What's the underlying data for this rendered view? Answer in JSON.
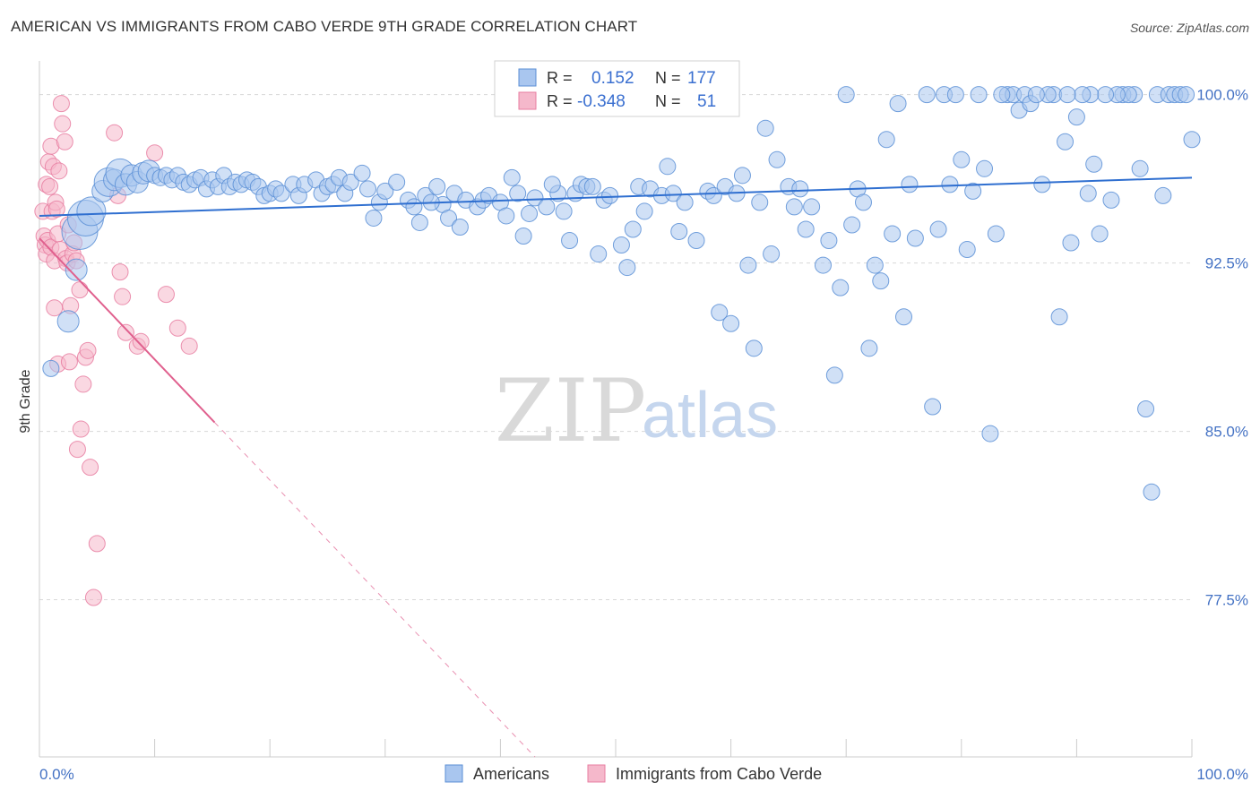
{
  "title": "AMERICAN VS IMMIGRANTS FROM CABO VERDE 9TH GRADE CORRELATION CHART",
  "source": "Source: ZipAtlas.com",
  "watermark": {
    "zip": "ZIP",
    "atlas": "atlas"
  },
  "colors": {
    "blue_fill": "#a9c6ef",
    "blue_stroke": "#5b8fd6",
    "blue_line": "#2f6fd0",
    "pink_fill": "#f5b8cb",
    "pink_stroke": "#e87ea1",
    "pink_line": "#e0608e",
    "tick_text": "#4472c4",
    "grid": "#d8d8d8"
  },
  "stats": {
    "americans": {
      "r_label": "R =",
      "r_value": "0.152",
      "n_label": "N =",
      "n_value": "177"
    },
    "cabo_verde": {
      "r_label": "R =",
      "r_value": "-0.348",
      "n_label": "N =",
      "n_value": "51"
    }
  },
  "chart_data": {
    "type": "scatter",
    "title": "AMERICAN VS IMMIGRANTS FROM CABO VERDE 9TH GRADE CORRELATION CHART",
    "xlabel": "",
    "ylabel": "9th Grade",
    "xlim": [
      0,
      100
    ],
    "ylim": [
      70.5,
      101.5
    ],
    "x_ticks": [
      "0.0%",
      "100.0%"
    ],
    "y_ticks": [
      {
        "value": 100.0,
        "label": "100.0%"
      },
      {
        "value": 92.5,
        "label": "92.5%"
      },
      {
        "value": 85.0,
        "label": "85.0%"
      },
      {
        "value": 77.5,
        "label": "77.5%"
      }
    ],
    "grid": true,
    "legend_position": "bottom",
    "series": [
      {
        "name": "Americans",
        "color": "#a9c6ef",
        "trend": {
          "x": [
            0,
            100
          ],
          "y": [
            94.6,
            96.3
          ],
          "dashed_to": null
        },
        "points": [
          [
            1.0,
            87.8,
            1
          ],
          [
            2.5,
            89.9,
            2
          ],
          [
            3.2,
            92.2,
            2
          ],
          [
            3.5,
            93.9,
            4
          ],
          [
            4.0,
            94.5,
            4
          ],
          [
            4.5,
            94.8,
            3
          ],
          [
            5.5,
            95.7,
            2
          ],
          [
            6.0,
            96.1,
            3
          ],
          [
            6.5,
            96.2,
            2
          ],
          [
            7.0,
            96.5,
            3
          ],
          [
            7.5,
            96.0,
            2
          ],
          [
            8.0,
            96.4,
            2
          ],
          [
            8.5,
            96.1,
            2
          ],
          [
            9.0,
            96.5,
            2
          ],
          [
            9.5,
            96.6,
            2
          ],
          [
            10.0,
            96.4,
            1
          ],
          [
            10.5,
            96.3,
            1
          ],
          [
            11.0,
            96.4,
            1
          ],
          [
            11.5,
            96.2,
            1
          ],
          [
            12.0,
            96.4,
            1
          ],
          [
            12.5,
            96.1,
            1
          ],
          [
            13.0,
            96.0,
            1
          ],
          [
            13.5,
            96.2,
            1
          ],
          [
            14.0,
            96.3,
            1
          ],
          [
            14.5,
            95.8,
            1
          ],
          [
            15.0,
            96.2,
            1
          ],
          [
            15.5,
            95.9,
            1
          ],
          [
            16.0,
            96.4,
            1
          ],
          [
            16.5,
            95.9,
            1
          ],
          [
            17.0,
            96.1,
            1
          ],
          [
            17.5,
            96.0,
            1
          ],
          [
            18.0,
            96.2,
            1
          ],
          [
            18.5,
            96.1,
            1
          ],
          [
            19.0,
            95.9,
            1
          ],
          [
            19.5,
            95.5,
            1
          ],
          [
            20.0,
            95.6,
            1
          ],
          [
            20.5,
            95.8,
            1
          ],
          [
            21.0,
            95.6,
            1
          ],
          [
            22.0,
            96.0,
            1
          ],
          [
            22.5,
            95.5,
            1
          ],
          [
            23.0,
            96.0,
            1
          ],
          [
            24.0,
            96.2,
            1
          ],
          [
            24.5,
            95.6,
            1
          ],
          [
            25.0,
            95.9,
            1
          ],
          [
            25.5,
            96.0,
            1
          ],
          [
            26.0,
            96.3,
            1
          ],
          [
            26.5,
            95.6,
            1
          ],
          [
            27.0,
            96.1,
            1
          ],
          [
            28.0,
            96.5,
            1
          ],
          [
            28.5,
            95.8,
            1
          ],
          [
            29.0,
            94.5,
            1
          ],
          [
            29.5,
            95.2,
            1
          ],
          [
            30.0,
            95.7,
            1
          ],
          [
            31.0,
            96.1,
            1
          ],
          [
            32.0,
            95.3,
            1
          ],
          [
            32.5,
            95.0,
            1
          ],
          [
            33.0,
            94.3,
            1
          ],
          [
            33.5,
            95.5,
            1
          ],
          [
            34.5,
            95.9,
            1
          ],
          [
            35.0,
            95.1,
            1
          ],
          [
            35.5,
            94.5,
            1
          ],
          [
            36.0,
            95.6,
            1
          ],
          [
            36.5,
            94.1,
            1
          ],
          [
            37.0,
            95.3,
            1
          ],
          [
            38.0,
            95.0,
            1
          ],
          [
            38.5,
            95.3,
            1
          ],
          [
            39.0,
            95.5,
            1
          ],
          [
            40.0,
            95.2,
            1
          ],
          [
            40.5,
            94.6,
            1
          ],
          [
            41.0,
            96.3,
            1
          ],
          [
            41.5,
            95.6,
            1
          ],
          [
            42.0,
            93.7,
            1
          ],
          [
            42.5,
            94.7,
            1
          ],
          [
            43.0,
            95.4,
            1
          ],
          [
            44.0,
            95.0,
            1
          ],
          [
            45.0,
            95.6,
            1
          ],
          [
            45.5,
            94.8,
            1
          ],
          [
            46.0,
            93.5,
            1
          ],
          [
            46.5,
            95.6,
            1
          ],
          [
            47.0,
            96.0,
            1
          ],
          [
            47.5,
            95.9,
            1
          ],
          [
            48.0,
            95.9,
            1
          ],
          [
            48.5,
            92.9,
            1
          ],
          [
            49.0,
            95.3,
            1
          ],
          [
            49.5,
            95.5,
            1
          ],
          [
            50.5,
            93.3,
            1
          ],
          [
            51.0,
            92.3,
            1
          ],
          [
            51.5,
            94.0,
            1
          ],
          [
            52.0,
            95.9,
            1
          ],
          [
            52.5,
            94.8,
            1
          ],
          [
            53.0,
            95.8,
            1
          ],
          [
            54.0,
            95.5,
            1
          ],
          [
            54.5,
            96.8,
            1
          ],
          [
            55.0,
            95.6,
            1
          ],
          [
            55.5,
            93.9,
            1
          ],
          [
            56.0,
            95.2,
            1
          ],
          [
            57.0,
            93.5,
            1
          ],
          [
            58.0,
            95.7,
            1
          ],
          [
            58.5,
            95.5,
            1
          ],
          [
            59.0,
            90.3,
            1
          ],
          [
            59.5,
            95.9,
            1
          ],
          [
            60.0,
            89.8,
            1
          ],
          [
            60.5,
            95.6,
            1
          ],
          [
            61.0,
            96.4,
            1
          ],
          [
            61.5,
            92.4,
            1
          ],
          [
            62.0,
            88.7,
            1
          ],
          [
            62.5,
            95.2,
            1
          ],
          [
            63.0,
            98.5,
            1
          ],
          [
            63.5,
            92.9,
            1
          ],
          [
            64.0,
            97.1,
            1
          ],
          [
            65.0,
            95.9,
            1
          ],
          [
            65.5,
            95.0,
            1
          ],
          [
            66.0,
            95.8,
            1
          ],
          [
            66.5,
            94.0,
            1
          ],
          [
            67.0,
            95.0,
            1
          ],
          [
            68.0,
            92.4,
            1
          ],
          [
            68.5,
            93.5,
            1
          ],
          [
            69.0,
            87.5,
            1
          ],
          [
            69.5,
            91.4,
            1
          ],
          [
            70.0,
            100.0,
            1
          ],
          [
            70.5,
            94.2,
            1
          ],
          [
            71.0,
            95.8,
            1
          ],
          [
            71.5,
            95.2,
            1
          ],
          [
            72.0,
            88.7,
            1
          ],
          [
            72.5,
            92.4,
            1
          ],
          [
            73.0,
            91.7,
            1
          ],
          [
            73.5,
            98.0,
            1
          ],
          [
            74.0,
            93.8,
            1
          ],
          [
            75.0,
            90.1,
            1
          ],
          [
            75.5,
            96.0,
            1
          ],
          [
            76.0,
            93.6,
            1
          ],
          [
            77.0,
            100.0,
            1
          ],
          [
            77.5,
            86.1,
            1
          ],
          [
            78.0,
            94.0,
            1
          ],
          [
            78.5,
            100.0,
            1
          ],
          [
            79.0,
            96.0,
            1
          ],
          [
            80.0,
            97.1,
            1
          ],
          [
            80.5,
            93.1,
            1
          ],
          [
            81.0,
            95.7,
            1
          ],
          [
            81.5,
            100.0,
            1
          ],
          [
            82.0,
            96.7,
            1
          ],
          [
            82.5,
            84.9,
            1
          ],
          [
            83.0,
            93.8,
            1
          ],
          [
            84.0,
            100.0,
            1
          ],
          [
            84.5,
            100.0,
            1
          ],
          [
            85.0,
            99.3,
            1
          ],
          [
            85.5,
            100.0,
            1
          ],
          [
            86.0,
            99.6,
            1
          ],
          [
            87.0,
            96.0,
            1
          ],
          [
            88.0,
            100.0,
            1
          ],
          [
            88.5,
            90.1,
            1
          ],
          [
            89.0,
            97.9,
            1
          ],
          [
            89.5,
            93.4,
            1
          ],
          [
            90.0,
            99.0,
            1
          ],
          [
            91.0,
            95.6,
            1
          ],
          [
            91.5,
            96.9,
            1
          ],
          [
            92.0,
            93.8,
            1
          ],
          [
            93.0,
            95.3,
            1
          ],
          [
            94.0,
            100.0,
            1
          ],
          [
            95.0,
            100.0,
            1
          ],
          [
            95.5,
            96.7,
            1
          ],
          [
            96.0,
            86.0,
            1
          ],
          [
            97.0,
            100.0,
            1
          ],
          [
            97.5,
            95.5,
            1
          ],
          [
            98.0,
            100.0,
            1
          ],
          [
            98.5,
            100.0,
            1
          ],
          [
            99.0,
            100.0,
            1
          ],
          [
            99.5,
            100.0,
            1
          ],
          [
            100.0,
            98.0,
            1
          ],
          [
            96.5,
            82.3,
            1
          ],
          [
            94.5,
            100.0,
            1
          ],
          [
            93.5,
            100.0,
            1
          ],
          [
            92.5,
            100.0,
            1
          ],
          [
            91.2,
            100.0,
            1
          ],
          [
            90.5,
            100.0,
            1
          ],
          [
            89.2,
            100.0,
            1
          ],
          [
            87.5,
            100.0,
            1
          ],
          [
            86.5,
            100.0,
            1
          ],
          [
            83.5,
            100.0,
            1
          ],
          [
            79.5,
            100.0,
            1
          ],
          [
            74.5,
            99.6,
            1
          ],
          [
            44.5,
            96.0,
            1
          ],
          [
            34.0,
            95.2,
            1
          ]
        ]
      },
      {
        "name": "Immigrants from Cabo Verde",
        "color": "#f5b8cb",
        "trend": {
          "x": [
            0,
            15.2
          ],
          "y": [
            93.6,
            85.4
          ],
          "dashed_to": [
            43.0,
            70.5
          ]
        },
        "points": [
          [
            0.3,
            94.8,
            1
          ],
          [
            0.4,
            93.7,
            1
          ],
          [
            0.5,
            93.3,
            1
          ],
          [
            0.6,
            92.9,
            1
          ],
          [
            0.6,
            96.0,
            1
          ],
          [
            0.7,
            93.5,
            1
          ],
          [
            0.8,
            97.0,
            1
          ],
          [
            0.9,
            95.9,
            1
          ],
          [
            1.0,
            97.7,
            1
          ],
          [
            1.0,
            93.2,
            1
          ],
          [
            1.1,
            94.8,
            1
          ],
          [
            1.2,
            96.8,
            1
          ],
          [
            1.3,
            92.6,
            1
          ],
          [
            1.3,
            90.5,
            1
          ],
          [
            1.4,
            95.2,
            1
          ],
          [
            1.5,
            94.9,
            1
          ],
          [
            1.6,
            93.8,
            1
          ],
          [
            1.6,
            88.0,
            1
          ],
          [
            1.7,
            96.6,
            1
          ],
          [
            1.8,
            93.1,
            1
          ],
          [
            1.9,
            99.6,
            1
          ],
          [
            2.0,
            98.7,
            1
          ],
          [
            2.2,
            97.9,
            1
          ],
          [
            2.3,
            92.7,
            1
          ],
          [
            2.4,
            92.5,
            1
          ],
          [
            2.5,
            94.2,
            1
          ],
          [
            2.6,
            88.1,
            1
          ],
          [
            2.7,
            90.6,
            1
          ],
          [
            2.9,
            92.9,
            1
          ],
          [
            3.0,
            93.4,
            1
          ],
          [
            3.2,
            92.6,
            1
          ],
          [
            3.3,
            84.2,
            1
          ],
          [
            3.5,
            91.3,
            1
          ],
          [
            3.6,
            85.1,
            1
          ],
          [
            3.8,
            87.1,
            1
          ],
          [
            4.0,
            88.3,
            1
          ],
          [
            4.2,
            88.6,
            1
          ],
          [
            4.4,
            83.4,
            1
          ],
          [
            4.7,
            77.6,
            1
          ],
          [
            5.0,
            80.0,
            1
          ],
          [
            6.5,
            98.3,
            1
          ],
          [
            6.8,
            95.5,
            1
          ],
          [
            7.0,
            92.1,
            1
          ],
          [
            7.2,
            91.0,
            1
          ],
          [
            7.5,
            89.4,
            1
          ],
          [
            8.5,
            88.8,
            1
          ],
          [
            8.8,
            89.0,
            1
          ],
          [
            10.0,
            97.4,
            1
          ],
          [
            11.0,
            91.1,
            1
          ],
          [
            12.0,
            89.6,
            1
          ],
          [
            13.0,
            88.8,
            1
          ]
        ]
      }
    ]
  }
}
